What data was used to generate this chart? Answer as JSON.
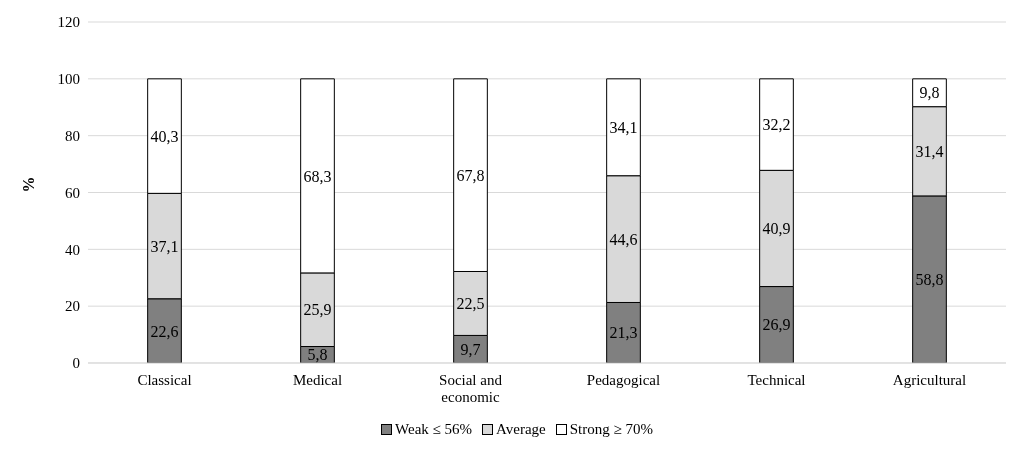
{
  "chart_data": {
    "type": "bar",
    "stacked": true,
    "ylabel": "%",
    "categories": [
      "Classical",
      "Medical",
      "Social and economic",
      "Pedagogical",
      "Technical",
      "Agricultural"
    ],
    "series": [
      {
        "name": "Weak ≤ 56%",
        "color": "#808080",
        "values": [
          22.6,
          5.8,
          9.7,
          21.3,
          26.9,
          58.8
        ],
        "value_labels": [
          "22,6",
          "5,8",
          "9,7",
          "21,3",
          "26,9",
          "58,8"
        ]
      },
      {
        "name": "Average",
        "color": "#d9d9d9",
        "values": [
          37.1,
          25.9,
          22.5,
          44.6,
          40.9,
          31.4
        ],
        "value_labels": [
          "37,1",
          "25,9",
          "22,5",
          "44,6",
          "40,9",
          "31,4"
        ]
      },
      {
        "name": "Strong ≥ 70%",
        "color": "#ffffff",
        "values": [
          40.3,
          68.3,
          67.8,
          34.1,
          32.2,
          9.8
        ],
        "value_labels": [
          "40,3",
          "68,3",
          "67,8",
          "34,1",
          "32,2",
          "9,8"
        ]
      }
    ],
    "ylim": [
      0,
      120
    ],
    "yticks": [
      0,
      20,
      40,
      60,
      80,
      100,
      120
    ],
    "grid": "y",
    "legend": "bottom"
  }
}
